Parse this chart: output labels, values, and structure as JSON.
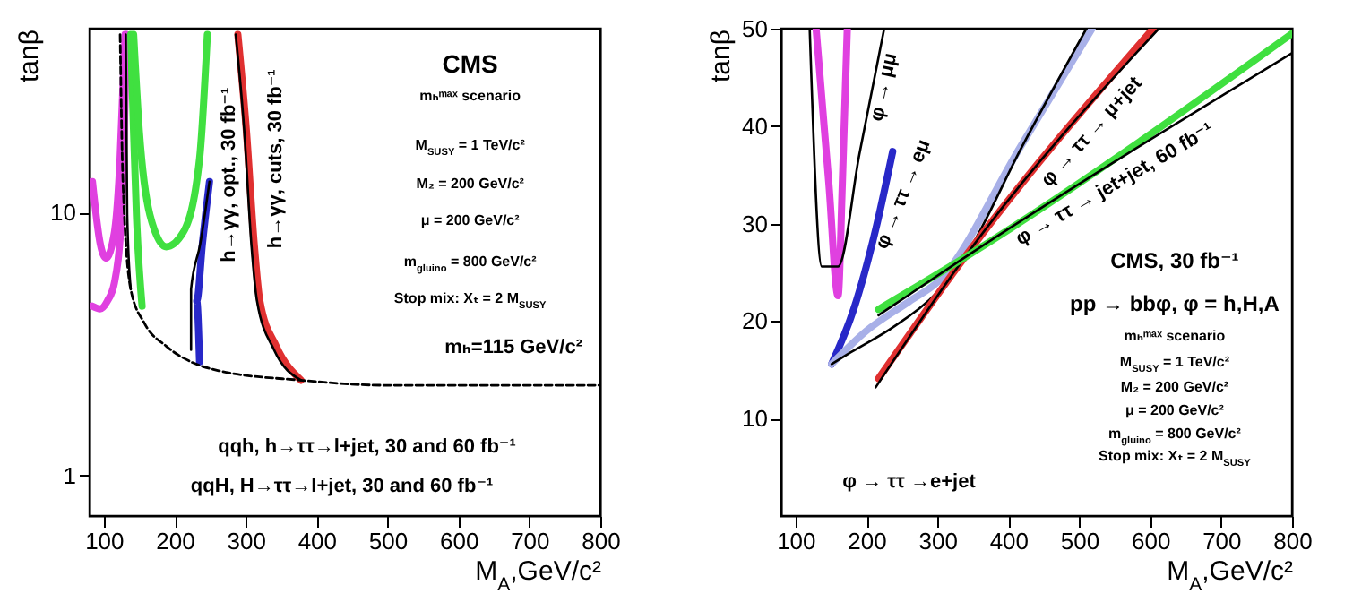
{
  "chart_data": [
    {
      "type": "line",
      "xlabel": "M$_{A}$,GeV/c²",
      "ylabel": "tanβ",
      "xlim": [
        80,
        800
      ],
      "xticks": [
        100,
        200,
        300,
        400,
        500,
        600,
        700,
        800
      ],
      "ylim": [
        0.7,
        50
      ],
      "yticks": [
        1,
        10
      ],
      "log": "y",
      "series": [
        {
          "color": "#e040e0",
          "x": [
            84,
            95,
            103,
            115,
            123,
            130
          ],
          "values": [
            13.1,
            7.6,
            6.7,
            8.4,
            16,
            47.5
          ]
        },
        {
          "color": "#e040e0",
          "x": [
            84,
            95,
            105,
            115,
            125,
            132
          ],
          "values": [
            4.4,
            4.3,
            4.6,
            5.4,
            9.8,
            47.5
          ]
        },
        {
          "color": "#40e040",
          "x": [
            138,
            142,
            146,
            154
          ],
          "values": [
            47.5,
            20.5,
            9.8,
            4.4
          ]
        },
        {
          "color": "#40e040",
          "x": [
            142,
            150,
            165,
            188,
            212,
            235,
            246
          ],
          "values": [
            47.5,
            20.5,
            9.8,
            7.4,
            8.4,
            16,
            47.5
          ]
        },
        {
          "color": "#2828c8",
          "x": [
            249,
            239,
            231,
            235
          ],
          "values": [
            13.1,
            7.6,
            4.6,
            2.7
          ]
        },
        {
          "color": "#e03030",
          "x": [
            289,
            301,
            312,
            320,
            343,
            378
          ],
          "values": [
            47.5,
            20.5,
            7.6,
            4.6,
            3.1,
            2.3
          ]
        },
        {
          "color": "#000000",
          "x": [
            131,
            133,
            138
          ],
          "values": [
            47.5,
            9.8,
            5.1
          ]
        },
        {
          "color": "#000000",
          "x": [
            249,
            236,
            223,
            223
          ],
          "values": [
            13.1,
            7.6,
            5.1,
            3.0
          ]
        },
        {
          "color": "#000000",
          "x": [
            286,
            298,
            308,
            316,
            340,
            378
          ],
          "values": [
            47.5,
            20.5,
            7.6,
            4.6,
            3.0,
            2.3
          ]
        },
        {
          "color": "#000000",
          "line_style": "dashed",
          "x": [
            123,
            127,
            138,
            157,
            188,
            223,
            262,
            378,
            498,
            800
          ],
          "values": [
            47.5,
            13.1,
            5.1,
            3.8,
            3.1,
            2.7,
            2.5,
            2.3,
            2.2,
            2.2
          ]
        }
      ],
      "annotations": [
        "CMS",
        "mₕᵐᵃˣ scenario",
        "M$_{SUSY}$ = 1 TeV/c²",
        "M₂ = 200 GeV/c²",
        "μ = 200 GeV/c²",
        "m$_{gluino}$ = 800 GeV/c²",
        "Stop mix: Xₜ = 2 M$_{SUSY}$",
        "mₕ=115 GeV/c²",
        "h→γγ, opt., 30 fb⁻¹",
        "h→γγ, cuts, 30 fb⁻¹",
        "qqh, h→ττ→l+jet, 30 and 60 fb⁻¹",
        "qqH, H→ττ→l+jet, 30 and 60 fb⁻¹"
      ]
    },
    {
      "type": "line",
      "xlabel": "M$_{A}$,GeV/c²",
      "ylabel": "tanβ",
      "xlim": [
        80,
        800
      ],
      "xticks": [
        100,
        200,
        300,
        400,
        500,
        600,
        700,
        800
      ],
      "ylim": [
        0,
        50
      ],
      "yticks": [
        10,
        20,
        30,
        40,
        50
      ],
      "series": [
        {
          "color": "#e040e0",
          "x": [
            129,
            147,
            160,
            166,
            173
          ],
          "values": [
            50,
            34.1,
            22.6,
            34.1,
            50
          ]
        },
        {
          "color": "#000000",
          "x": [
            120,
            137,
            160,
            190,
            225
          ],
          "values": [
            50,
            25.6,
            25.6,
            37.1,
            50
          ]
        },
        {
          "color": "#2828c8",
          "x": [
            151,
            182,
            213,
            237
          ],
          "values": [
            15.6,
            21.2,
            29.4,
            37.4
          ]
        },
        {
          "color": "#a8b0e8",
          "x": [
            151,
            200,
            260,
            300,
            418,
            518
          ],
          "values": [
            15.6,
            19,
            22,
            24,
            38,
            50
          ]
        },
        {
          "color": "#000000",
          "x": [
            151,
            178,
            240,
            300,
            338,
            420,
            510
          ],
          "values": [
            15.6,
            16.8,
            19.5,
            23,
            26.5,
            38,
            50
          ]
        },
        {
          "color": "#e03030",
          "x": [
            217,
            338,
            604
          ],
          "values": [
            14.1,
            26.5,
            50
          ]
        },
        {
          "color": "#000000",
          "x": [
            213,
            338,
            612
          ],
          "values": [
            13.2,
            26.5,
            50
          ]
        },
        {
          "color": "#40e040",
          "x": [
            217,
            338,
            800
          ],
          "values": [
            21.2,
            26.5,
            49.5
          ]
        },
        {
          "color": "#000000",
          "x": [
            217,
            338,
            800
          ],
          "values": [
            20.6,
            26.5,
            47.5
          ]
        }
      ],
      "annotations": [
        "CMS, 30 fb⁻¹",
        "pp → bbφ, φ = h,H,A",
        "mₕᵐᵃˣ scenario",
        "M$_{SUSY}$ = 1 TeV/c²",
        "M₂ = 200 GeV/c²",
        "μ = 200 GeV/c²",
        "m$_{gluino}$ = 800 GeV/c²",
        "Stop mix: Xₜ = 2 M$_{SUSY}$",
        "φ → μμ",
        "φ → ττ → eμ",
        "φ → ττ → μ+jet",
        "φ → ττ → jet+jet, 60 fb⁻¹",
        "φ → ττ →e+jet"
      ]
    }
  ]
}
